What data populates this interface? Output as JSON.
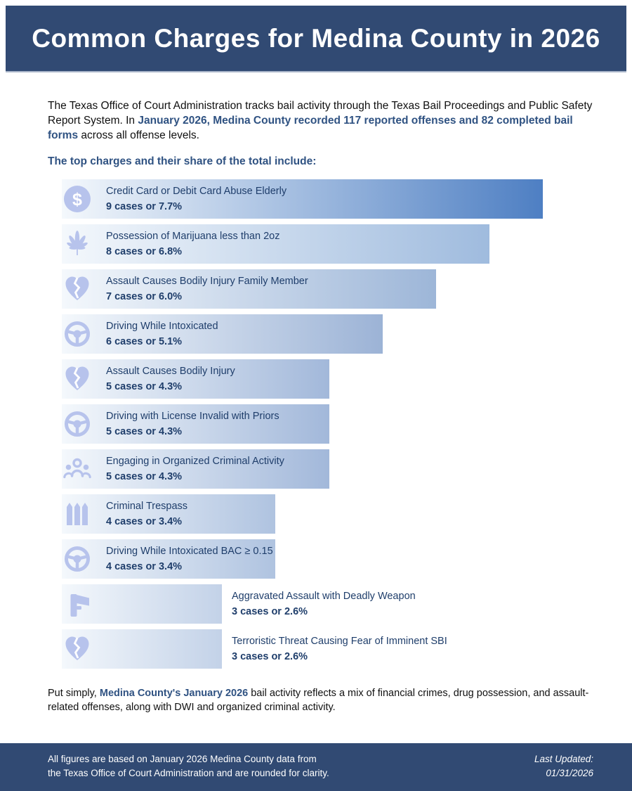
{
  "header": {
    "title": "Common Charges for Medina County in 2026"
  },
  "intro": {
    "pre": "The Texas Office of Court Administration tracks bail activity through the Texas Bail Proceedings and Public Safety Report System. In ",
    "highlight": "January 2026, Medina County recorded 117 reported offenses and 82 completed bail forms",
    "post": " across all offense levels."
  },
  "section_heading": "The top charges and their share of the total include:",
  "chart_data": {
    "type": "bar",
    "orientation": "horizontal",
    "unit": "cases",
    "max_cases": 9,
    "bar_start_color": "#f4f8fc",
    "rows": [
      {
        "label": "Credit Card or Debit Card Abuse Elderly",
        "cases": 9,
        "pct": 7.7,
        "stat_text": "9 cases or 7.7%",
        "icon": "dollar-icon",
        "end_color": "#4e7fc3"
      },
      {
        "label": "Possession of Marijuana less than 2oz",
        "cases": 8,
        "pct": 6.8,
        "stat_text": "8 cases or 6.8%",
        "icon": "marijuana-leaf-icon",
        "end_color": "#9fbbde"
      },
      {
        "label": "Assault Causes Bodily Injury Family Member",
        "cases": 7,
        "pct": 6.0,
        "stat_text": "7 cases or 6.0%",
        "icon": "broken-heart-icon",
        "end_color": "#9db6d8"
      },
      {
        "label": "Driving While Intoxicated",
        "cases": 6,
        "pct": 5.1,
        "stat_text": "6 cases or 5.1%",
        "icon": "steering-wheel-icon",
        "end_color": "#9cb3d6"
      },
      {
        "label": "Assault Causes Bodily Injury",
        "cases": 5,
        "pct": 4.3,
        "stat_text": "5 cases or 4.3%",
        "icon": "broken-heart-icon",
        "end_color": "#a2b8da"
      },
      {
        "label": "Driving with License Invalid with Priors",
        "cases": 5,
        "pct": 4.3,
        "stat_text": "5 cases or 4.3%",
        "icon": "steering-wheel-icon",
        "end_color": "#a2b8da"
      },
      {
        "label": "Engaging in Organized Criminal Activity",
        "cases": 5,
        "pct": 4.3,
        "stat_text": "5 cases or 4.3%",
        "icon": "people-group-icon",
        "end_color": "#a2b8da"
      },
      {
        "label": "Criminal Trespass",
        "cases": 4,
        "pct": 3.4,
        "stat_text": "4 cases or 3.4%",
        "icon": "fence-icon",
        "end_color": "#afc3e0"
      },
      {
        "label": "Driving While Intoxicated BAC ≥ 0.15",
        "cases": 4,
        "pct": 3.4,
        "stat_text": "4 cases or 3.4%",
        "icon": "steering-wheel-icon",
        "end_color": "#afc3e0"
      },
      {
        "label": "Aggravated Assault with Deadly Weapon",
        "cases": 3,
        "pct": 2.6,
        "stat_text": "3 cases or 2.6%",
        "icon": "handgun-icon",
        "end_color": "#c3d2e8"
      },
      {
        "label": "Terroristic Threat Causing Fear of Imminent SBI",
        "cases": 3,
        "pct": 2.6,
        "stat_text": "3 cases or 2.6%",
        "icon": "broken-heart-icon",
        "end_color": "#c3d2e8"
      }
    ]
  },
  "outro": {
    "pre": "Put simply, ",
    "highlight": "Medina County's January 2026",
    "post": " bail activity reflects a mix of financial crimes, drug possession, and assault-related offenses, along with DWI and organized criminal activity."
  },
  "footer": {
    "line1": "All figures are based on January 2026 Medina County data from",
    "line2": "the Texas Office of Court Administration and are rounded for clarity.",
    "updated_label": "Last Updated:",
    "updated_date": "01/31/2026"
  },
  "colors": {
    "band_navy": "#314a73",
    "accent_navy": "#2f5282",
    "row_text_navy": "#1f3e6b",
    "icon_periwinkle": "#b7c3ec"
  }
}
